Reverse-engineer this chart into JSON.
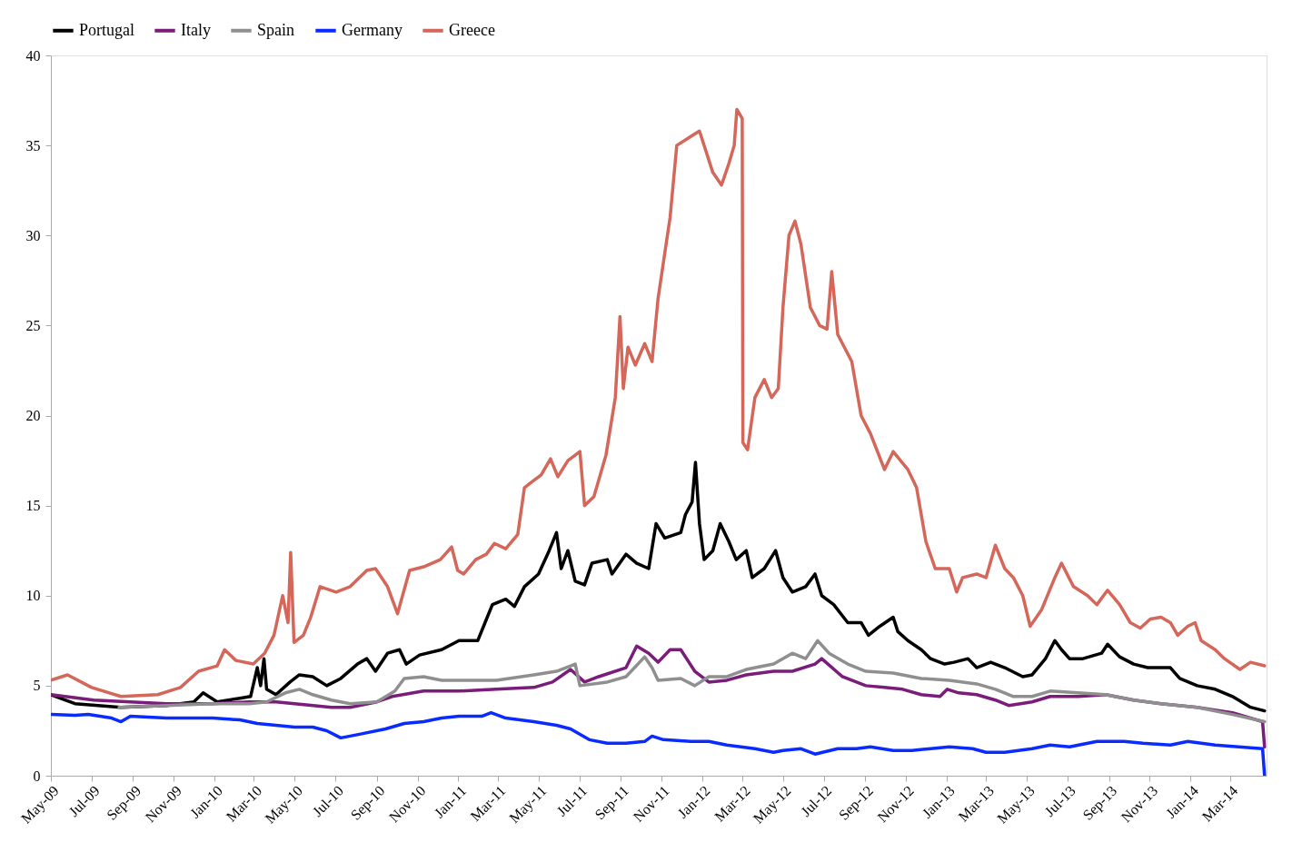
{
  "chart_data": {
    "type": "line",
    "xlim": [
      "2009-05-01",
      "2014-04-25"
    ],
    "ylim": [
      0,
      40
    ],
    "yticks": [
      0,
      5,
      10,
      15,
      20,
      25,
      30,
      35,
      40
    ],
    "grid": false,
    "legend": "top",
    "marker": "none",
    "line_style": "solid",
    "xticks": [
      {
        "value": "2009-05-01",
        "label": "May-09"
      },
      {
        "value": "2009-07-01",
        "label": "Jul-09"
      },
      {
        "value": "2009-09-01",
        "label": "Sep-09"
      },
      {
        "value": "2009-11-01",
        "label": "Nov-09"
      },
      {
        "value": "2010-01-01",
        "label": "Jan-10"
      },
      {
        "value": "2010-03-01",
        "label": "Mar-10"
      },
      {
        "value": "2010-05-01",
        "label": "May-10"
      },
      {
        "value": "2010-07-01",
        "label": "Jul-10"
      },
      {
        "value": "2010-09-01",
        "label": "Sep-10"
      },
      {
        "value": "2010-11-01",
        "label": "Nov-10"
      },
      {
        "value": "2011-01-01",
        "label": "Jan-11"
      },
      {
        "value": "2011-03-01",
        "label": "Mar-11"
      },
      {
        "value": "2011-05-01",
        "label": "May-11"
      },
      {
        "value": "2011-07-01",
        "label": "Jul-11"
      },
      {
        "value": "2011-09-01",
        "label": "Sep-11"
      },
      {
        "value": "2011-11-01",
        "label": "Nov-11"
      },
      {
        "value": "2012-01-01",
        "label": "Jan-12"
      },
      {
        "value": "2012-03-01",
        "label": "Mar-12"
      },
      {
        "value": "2012-05-01",
        "label": "May-12"
      },
      {
        "value": "2012-07-01",
        "label": "Jul-12"
      },
      {
        "value": "2012-09-01",
        "label": "Sep-12"
      },
      {
        "value": "2012-11-01",
        "label": "Nov-12"
      },
      {
        "value": "2013-01-01",
        "label": "Jan-13"
      },
      {
        "value": "2013-03-01",
        "label": "Mar-13"
      },
      {
        "value": "2013-05-01",
        "label": "May-13"
      },
      {
        "value": "2013-07-01",
        "label": "Jul-13"
      },
      {
        "value": "2013-09-01",
        "label": "Sep-13"
      },
      {
        "value": "2013-11-01",
        "label": "Nov-13"
      },
      {
        "value": "2014-01-01",
        "label": "Jan-14"
      },
      {
        "value": "2014-03-01",
        "label": "Mar-14"
      }
    ],
    "series": [
      {
        "name": "Portugal",
        "color": "#000000",
        "x": [
          "2009-05-01",
          "2009-06-06",
          "2009-08-14",
          "2009-10-21",
          "2009-12-01",
          "2009-12-15",
          "2010-01-05",
          "2010-02-08",
          "2010-02-24",
          "2010-03-06",
          "2010-03-11",
          "2010-03-16",
          "2010-03-20",
          "2010-04-03",
          "2010-04-24",
          "2010-05-08",
          "2010-05-28",
          "2010-06-18",
          "2010-07-09",
          "2010-08-03",
          "2010-08-17",
          "2010-08-30",
          "2010-09-17",
          "2010-10-05",
          "2010-10-15",
          "2010-11-04",
          "2010-12-07",
          "2011-01-02",
          "2011-01-30",
          "2011-02-10",
          "2011-02-21",
          "2011-03-13",
          "2011-03-26",
          "2011-04-10",
          "2011-05-01",
          "2011-05-17",
          "2011-05-28",
          "2011-06-04",
          "2011-06-14",
          "2011-06-25",
          "2011-07-09",
          "2011-07-20",
          "2011-08-12",
          "2011-08-19",
          "2011-09-09",
          "2011-09-25",
          "2011-10-13",
          "2011-10-24",
          "2011-11-06",
          "2011-11-30",
          "2011-12-07",
          "2011-12-17",
          "2011-12-22",
          "2011-12-28",
          "2012-01-04",
          "2012-01-17",
          "2012-01-28",
          "2012-02-10",
          "2012-02-21",
          "2012-03-07",
          "2012-03-16",
          "2012-04-03",
          "2012-04-20",
          "2012-05-01",
          "2012-05-15",
          "2012-06-04",
          "2012-06-18",
          "2012-06-28",
          "2012-07-16",
          "2012-08-06",
          "2012-08-26",
          "2012-09-06",
          "2012-09-23",
          "2012-10-13",
          "2012-10-20",
          "2012-11-04",
          "2012-11-24",
          "2012-12-08",
          "2012-12-29",
          "2013-01-12",
          "2013-02-02",
          "2013-02-15",
          "2013-03-08",
          "2013-03-29",
          "2013-04-25",
          "2013-05-09",
          "2013-05-29",
          "2013-06-12",
          "2013-06-22",
          "2013-07-04",
          "2013-07-24",
          "2013-08-21",
          "2013-08-30",
          "2013-09-17",
          "2013-10-08",
          "2013-10-29",
          "2013-12-02",
          "2013-12-16",
          "2014-01-11",
          "2014-02-07",
          "2014-03-05",
          "2014-04-01",
          "2014-04-22"
        ],
        "values": [
          4.5,
          4.0,
          3.8,
          3.9,
          4.1,
          4.6,
          4.1,
          4.3,
          4.4,
          6.0,
          5.0,
          6.5,
          4.8,
          4.5,
          5.2,
          5.6,
          5.5,
          5.0,
          5.4,
          6.2,
          6.5,
          5.8,
          6.8,
          7.0,
          6.2,
          6.7,
          7.0,
          7.5,
          7.5,
          8.5,
          9.5,
          9.8,
          9.4,
          10.5,
          11.2,
          12.5,
          13.5,
          11.5,
          12.5,
          10.8,
          10.6,
          11.8,
          12.0,
          11.2,
          12.3,
          11.8,
          11.5,
          14.0,
          13.2,
          13.5,
          14.5,
          15.2,
          17.4,
          14.0,
          12.0,
          12.5,
          14.0,
          13.0,
          12.0,
          12.5,
          11.0,
          11.5,
          12.5,
          11.0,
          10.2,
          10.5,
          11.2,
          10.0,
          9.5,
          8.5,
          8.5,
          7.8,
          8.3,
          8.8,
          8.0,
          7.5,
          7.0,
          6.5,
          6.2,
          6.3,
          6.5,
          6.0,
          6.3,
          6.0,
          5.5,
          5.6,
          6.5,
          7.5,
          7.0,
          6.5,
          6.5,
          6.8,
          7.3,
          6.6,
          6.2,
          6.0,
          6.0,
          5.4,
          5.0,
          4.8,
          4.4,
          3.8,
          3.6
        ]
      },
      {
        "name": "Italy",
        "color": "#7a1c7a",
        "x": [
          "2009-05-01",
          "2009-07-04",
          "2009-10-21",
          "2009-12-29",
          "2010-02-22",
          "2010-04-03",
          "2010-05-01",
          "2010-06-25",
          "2010-07-23",
          "2010-09-01",
          "2010-09-24",
          "2010-11-10",
          "2011-01-02",
          "2011-02-27",
          "2011-04-24",
          "2011-05-22",
          "2011-06-18",
          "2011-07-09",
          "2011-07-30",
          "2011-09-09",
          "2011-09-25",
          "2011-10-13",
          "2011-10-27",
          "2011-11-14",
          "2011-11-30",
          "2011-12-21",
          "2012-01-11",
          "2012-02-07",
          "2012-03-07",
          "2012-04-17",
          "2012-05-15",
          "2012-06-18",
          "2012-06-28",
          "2012-07-29",
          "2012-09-02",
          "2012-09-30",
          "2012-10-27",
          "2012-11-24",
          "2012-12-22",
          "2013-01-02",
          "2013-01-19",
          "2013-02-15",
          "2013-03-15",
          "2013-04-04",
          "2013-05-09",
          "2013-06-05",
          "2013-07-17",
          "2013-08-27",
          "2013-10-08",
          "2013-11-18",
          "2014-01-11",
          "2014-03-05",
          "2014-04-19",
          "2014-04-22"
        ],
        "values": [
          4.5,
          4.2,
          4.0,
          4.0,
          4.1,
          4.1,
          4.0,
          3.8,
          3.8,
          4.1,
          4.4,
          4.7,
          4.7,
          4.8,
          4.9,
          5.2,
          5.9,
          5.2,
          5.5,
          6.0,
          7.2,
          6.8,
          6.3,
          7.0,
          7.0,
          5.8,
          5.2,
          5.3,
          5.6,
          5.8,
          5.8,
          6.2,
          6.5,
          5.5,
          5.0,
          4.9,
          4.8,
          4.5,
          4.4,
          4.8,
          4.6,
          4.5,
          4.2,
          3.9,
          4.1,
          4.4,
          4.4,
          4.5,
          4.2,
          4.0,
          3.8,
          3.5,
          3.0,
          1.6
        ]
      },
      {
        "name": "Spain",
        "color": "#8f8f8f",
        "x": [
          "2009-08-11",
          "2009-10-21",
          "2009-12-29",
          "2010-02-22",
          "2010-03-20",
          "2010-04-17",
          "2010-05-08",
          "2010-05-28",
          "2010-06-25",
          "2010-07-23",
          "2010-09-01",
          "2010-09-28",
          "2010-10-12",
          "2010-11-10",
          "2010-12-07",
          "2011-01-30",
          "2011-02-27",
          "2011-04-24",
          "2011-05-28",
          "2011-06-25",
          "2011-07-02",
          "2011-08-12",
          "2011-09-09",
          "2011-10-07",
          "2011-10-18",
          "2011-10-27",
          "2011-11-30",
          "2011-12-21",
          "2012-01-11",
          "2012-02-07",
          "2012-03-07",
          "2012-04-17",
          "2012-05-15",
          "2012-06-04",
          "2012-06-22",
          "2012-07-09",
          "2012-08-06",
          "2012-09-02",
          "2012-10-13",
          "2012-11-24",
          "2013-01-05",
          "2013-02-15",
          "2013-03-15",
          "2013-04-11",
          "2013-05-09",
          "2013-06-05",
          "2013-07-17",
          "2013-08-27",
          "2013-10-08",
          "2013-11-18",
          "2014-01-11",
          "2014-03-05",
          "2014-04-22"
        ],
        "values": [
          3.8,
          3.9,
          4.0,
          4.0,
          4.1,
          4.6,
          4.8,
          4.5,
          4.2,
          4.0,
          4.1,
          4.7,
          5.4,
          5.5,
          5.3,
          5.3,
          5.3,
          5.6,
          5.8,
          6.2,
          5.0,
          5.2,
          5.5,
          6.6,
          6.0,
          5.3,
          5.4,
          5.0,
          5.5,
          5.5,
          5.9,
          6.2,
          6.8,
          6.5,
          7.5,
          6.8,
          6.2,
          5.8,
          5.7,
          5.4,
          5.3,
          5.1,
          4.8,
          4.4,
          4.4,
          4.7,
          4.6,
          4.5,
          4.2,
          4.0,
          3.8,
          3.4,
          3.0
        ]
      },
      {
        "name": "Germany",
        "color": "#0a2bff",
        "x": [
          "2009-05-01",
          "2009-06-06",
          "2009-06-26",
          "2009-07-31",
          "2009-08-14",
          "2009-08-28",
          "2009-10-21",
          "2009-12-29",
          "2010-02-08",
          "2010-03-06",
          "2010-04-03",
          "2010-05-01",
          "2010-05-28",
          "2010-06-18",
          "2010-07-09",
          "2010-08-06",
          "2010-09-14",
          "2010-10-12",
          "2010-11-10",
          "2010-12-07",
          "2011-01-02",
          "2011-02-05",
          "2011-02-19",
          "2011-03-13",
          "2011-04-24",
          "2011-05-28",
          "2011-06-18",
          "2011-07-16",
          "2011-08-12",
          "2011-09-09",
          "2011-10-07",
          "2011-10-18",
          "2011-11-04",
          "2011-12-15",
          "2012-01-11",
          "2012-02-07",
          "2012-03-20",
          "2012-04-17",
          "2012-05-01",
          "2012-05-28",
          "2012-06-18",
          "2012-07-22",
          "2012-08-19",
          "2012-09-09",
          "2012-10-13",
          "2012-11-10",
          "2012-12-08",
          "2013-01-05",
          "2013-02-09",
          "2013-03-01",
          "2013-03-29",
          "2013-05-09",
          "2013-06-05",
          "2013-07-04",
          "2013-08-14",
          "2013-09-24",
          "2013-10-22",
          "2013-12-02",
          "2013-12-28",
          "2014-02-07",
          "2014-04-19",
          "2014-04-22"
        ],
        "values": [
          3.4,
          3.35,
          3.4,
          3.2,
          3.0,
          3.3,
          3.2,
          3.2,
          3.1,
          2.9,
          2.8,
          2.7,
          2.7,
          2.5,
          2.1,
          2.3,
          2.6,
          2.9,
          3.0,
          3.2,
          3.3,
          3.3,
          3.5,
          3.2,
          3.0,
          2.8,
          2.6,
          2.0,
          1.8,
          1.8,
          1.9,
          2.2,
          2.0,
          1.9,
          1.9,
          1.7,
          1.5,
          1.3,
          1.4,
          1.5,
          1.2,
          1.5,
          1.5,
          1.6,
          1.4,
          1.4,
          1.5,
          1.6,
          1.5,
          1.3,
          1.3,
          1.5,
          1.7,
          1.6,
          1.9,
          1.9,
          1.8,
          1.7,
          1.9,
          1.7,
          1.5,
          0.0
        ]
      },
      {
        "name": "Greece",
        "color": "#d4665a",
        "x": [
          "2009-05-01",
          "2009-05-26",
          "2009-07-01",
          "2009-08-14",
          "2009-10-08",
          "2009-11-11",
          "2009-12-08",
          "2010-01-05",
          "2010-01-16",
          "2010-02-02",
          "2010-02-28",
          "2010-03-17",
          "2010-03-31",
          "2010-04-13",
          "2010-04-21",
          "2010-04-25",
          "2010-04-30",
          "2010-05-14",
          "2010-05-25",
          "2010-06-08",
          "2010-07-02",
          "2010-07-23",
          "2010-08-17",
          "2010-08-30",
          "2010-09-17",
          "2010-10-02",
          "2010-10-20",
          "2010-11-10",
          "2010-12-05",
          "2010-12-22",
          "2010-12-31",
          "2011-01-09",
          "2011-01-27",
          "2011-02-12",
          "2011-02-24",
          "2011-03-13",
          "2011-03-31",
          "2011-04-10",
          "2011-04-24",
          "2011-05-05",
          "2011-05-19",
          "2011-05-30",
          "2011-06-14",
          "2011-07-02",
          "2011-07-09",
          "2011-07-23",
          "2011-08-10",
          "2011-08-24",
          "2011-08-31",
          "2011-09-05",
          "2011-09-12",
          "2011-09-23",
          "2011-10-07",
          "2011-10-18",
          "2011-10-27",
          "2011-11-06",
          "2011-11-14",
          "2011-11-24",
          "2011-12-15",
          "2011-12-28",
          "2012-01-17",
          "2012-01-30",
          "2012-02-10",
          "2012-02-18",
          "2012-02-22",
          "2012-03-01",
          "2012-03-02",
          "2012-03-09",
          "2012-03-20",
          "2012-04-03",
          "2012-04-14",
          "2012-04-24",
          "2012-05-01",
          "2012-05-10",
          "2012-05-19",
          "2012-05-28",
          "2012-06-11",
          "2012-06-25",
          "2012-07-06",
          "2012-07-13",
          "2012-07-22",
          "2012-08-12",
          "2012-08-26",
          "2012-09-09",
          "2012-09-30",
          "2012-10-13",
          "2012-11-04",
          "2012-11-17",
          "2012-12-01",
          "2012-12-15",
          "2013-01-05",
          "2013-01-16",
          "2013-01-25",
          "2013-02-15",
          "2013-03-01",
          "2013-03-15",
          "2013-03-29",
          "2013-04-11",
          "2013-04-25",
          "2013-05-06",
          "2013-05-23",
          "2013-06-12",
          "2013-06-22",
          "2013-07-10",
          "2013-07-31",
          "2013-08-14",
          "2013-08-30",
          "2013-09-17",
          "2013-10-03",
          "2013-10-18",
          "2013-11-02",
          "2013-11-18",
          "2013-12-02",
          "2013-12-13",
          "2013-12-28",
          "2014-01-08",
          "2014-01-17",
          "2014-02-07",
          "2014-02-21",
          "2014-03-16",
          "2014-04-01",
          "2014-04-22"
        ],
        "values": [
          5.3,
          5.6,
          4.9,
          4.4,
          4.5,
          4.9,
          5.8,
          6.1,
          7.0,
          6.4,
          6.2,
          6.8,
          7.8,
          10.0,
          8.5,
          12.4,
          7.4,
          7.8,
          8.8,
          10.5,
          10.2,
          10.5,
          11.4,
          11.5,
          10.5,
          9.0,
          11.4,
          11.6,
          12.0,
          12.7,
          11.4,
          11.2,
          12.0,
          12.3,
          12.9,
          12.6,
          13.4,
          16.0,
          16.4,
          16.7,
          17.6,
          16.6,
          17.5,
          18.0,
          15.0,
          15.5,
          17.8,
          21.0,
          25.5,
          21.5,
          23.8,
          22.8,
          24.0,
          23.0,
          26.5,
          29.0,
          31.0,
          35.0,
          35.5,
          35.8,
          33.5,
          32.8,
          34.0,
          35.0,
          37.0,
          36.5,
          18.5,
          18.1,
          21.0,
          22.0,
          21.0,
          21.5,
          26.0,
          30.0,
          30.8,
          29.5,
          26.0,
          25.0,
          24.8,
          28.0,
          24.5,
          23.0,
          20.0,
          19.0,
          17.0,
          18.0,
          17.0,
          16.0,
          13.0,
          11.5,
          11.5,
          10.2,
          11.0,
          11.2,
          11.0,
          12.8,
          11.5,
          11.0,
          10.0,
          8.3,
          9.2,
          11.0,
          11.8,
          10.5,
          10.0,
          9.5,
          10.3,
          9.5,
          8.5,
          8.2,
          8.7,
          8.8,
          8.5,
          7.8,
          8.3,
          8.5,
          7.5,
          7.0,
          6.5,
          5.9,
          6.3,
          6.1
        ]
      }
    ]
  }
}
